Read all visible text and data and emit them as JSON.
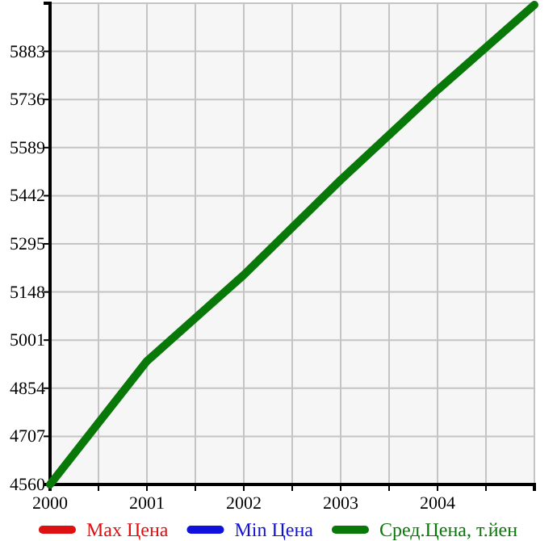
{
  "chart_data": {
    "type": "line",
    "x": [
      2000,
      2001,
      2002,
      2003,
      2004,
      2005
    ],
    "series": [
      {
        "name": "Max Цена",
        "color": "#dd1111",
        "values": [
          null,
          null,
          null,
          null,
          null,
          null
        ]
      },
      {
        "name": "Min Цена",
        "color": "#1111dd",
        "values": [
          null,
          null,
          null,
          null,
          null,
          null
        ]
      },
      {
        "name": "Сред.Цена, т.йен",
        "color": "#087808",
        "values": [
          4560,
          4937,
          5200,
          5490,
          5765,
          6025
        ]
      }
    ],
    "xlim": [
      2000,
      2005
    ],
    "xticks": [
      2000,
      {
        "value": 2000.5,
        "label": null
      },
      2001,
      {
        "value": 2001.5,
        "label": null
      },
      2002,
      {
        "value": 2002.5,
        "label": null
      },
      2003,
      {
        "value": 2003.5,
        "label": null
      },
      2004,
      {
        "value": 2004.5,
        "label": null
      },
      {
        "value": 2005,
        "label": null
      }
    ],
    "ylim": [
      4560,
      6030
    ],
    "yticks": [
      4560,
      4707,
      4854,
      5001,
      5148,
      5295,
      5442,
      5589,
      5736,
      5883,
      {
        "value": 6030,
        "label": null
      }
    ],
    "grid": true,
    "legend": "bottom",
    "marker": "none",
    "line_style": "solid"
  }
}
